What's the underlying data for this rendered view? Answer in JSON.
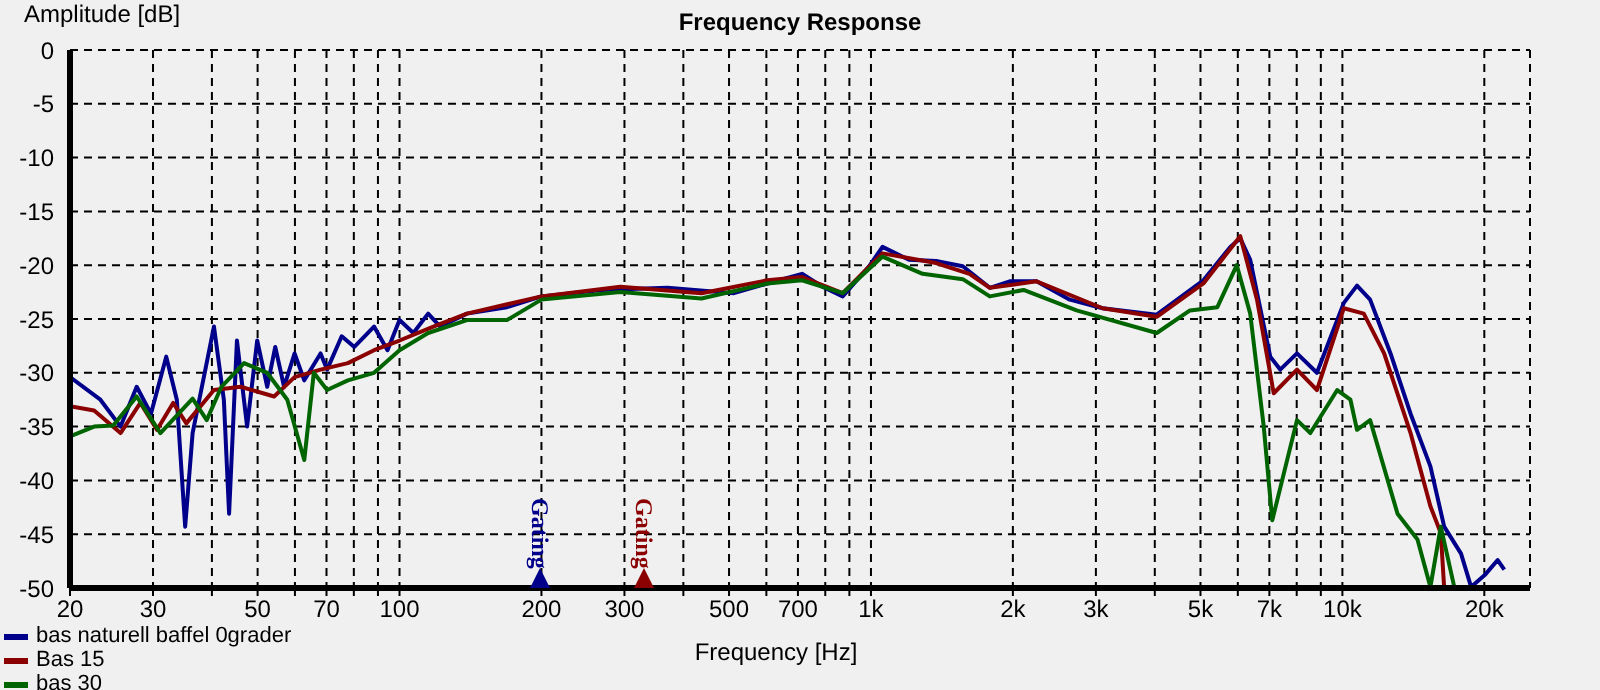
{
  "chart_data": {
    "type": "line",
    "title": "Frequency Response",
    "xlabel": "Frequency [Hz]",
    "ylabel": "Amplitude [dB]",
    "log": "x",
    "grid": true,
    "legend": "bottom left",
    "marker": "none",
    "line_style": "solid",
    "xlim": [
      20,
      25000
    ],
    "ylim": [
      -50,
      0
    ],
    "xticks": [
      20,
      30,
      {
        "value": 40,
        "label": null
      },
      50,
      {
        "value": 60,
        "label": null
      },
      70,
      {
        "value": 80,
        "label": null
      },
      {
        "value": 90,
        "label": null
      },
      100,
      200,
      300,
      {
        "value": 400,
        "label": null
      },
      500,
      {
        "value": 600,
        "label": null
      },
      700,
      {
        "value": 800,
        "label": null
      },
      {
        "value": 900,
        "label": null
      },
      {
        "value": 1000,
        "label": "1k"
      },
      {
        "value": 2000,
        "label": "2k"
      },
      {
        "value": 3000,
        "label": "3k"
      },
      {
        "value": 4000,
        "label": null
      },
      {
        "value": 5000,
        "label": "5k"
      },
      {
        "value": 6000,
        "label": null
      },
      {
        "value": 7000,
        "label": "7k"
      },
      {
        "value": 8000,
        "label": null
      },
      {
        "value": 9000,
        "label": null
      },
      {
        "value": 10000,
        "label": "10k"
      },
      {
        "value": 20000,
        "label": "20k"
      }
    ],
    "yticks": [
      0,
      -5,
      -10,
      -15,
      -20,
      -25,
      -30,
      -35,
      -40,
      -45,
      -50
    ],
    "annotations": [
      "Gating",
      "Gating"
    ],
    "series": [
      {
        "name": "bas naturell baffel 0grader",
        "color": "#00008b",
        "x": [
          20,
          23.2,
          25.6,
          27.7,
          29.7,
          32,
          33.7,
          35.1,
          36.4,
          40.4,
          42.4,
          43.5,
          45.2,
          47.5,
          49.9,
          52.4,
          54.5,
          56.9,
          59.9,
          62.8,
          68,
          70.2,
          75.4,
          80.2,
          88.3,
          94.3,
          100,
          107,
          115,
          122,
          139,
          169,
          200,
          268,
          370,
          512,
          603,
          714,
          789,
          871,
          991,
          1058,
          1204,
          1374,
          1566,
          1787,
          1969,
          2245,
          2641,
          3100,
          4038,
          5072,
          5785,
          6072,
          6375,
          7030,
          7380,
          8011,
          8830,
          10070,
          10740,
          11450,
          12650,
          13950,
          15370,
          16440,
          17850,
          18750,
          20040,
          21350,
          22050
        ],
        "values": [
          -30.4,
          -32.5,
          -35,
          -31.3,
          -33.8,
          -28.5,
          -32.5,
          -44.3,
          -35.6,
          -25.7,
          -32.5,
          -43.1,
          -27,
          -35,
          -27,
          -31.3,
          -27.6,
          -31.3,
          -28.2,
          -30.7,
          -28.2,
          -29.7,
          -26.6,
          -27.6,
          -25.7,
          -27.9,
          -25.1,
          -26.3,
          -24.5,
          -25.7,
          -24.5,
          -23.9,
          -22.9,
          -22.3,
          -22.1,
          -22.6,
          -21.7,
          -20.8,
          -22,
          -22.9,
          -20.1,
          -18.3,
          -19.5,
          -19.6,
          -20.1,
          -22.1,
          -21.5,
          -21.5,
          -23.2,
          -24,
          -24.6,
          -21.4,
          -18.3,
          -17.5,
          -19.5,
          -28.5,
          -29.7,
          -28.2,
          -30,
          -23.5,
          -21.9,
          -23.2,
          -28.2,
          -33.8,
          -38.7,
          -44.3,
          -46.8,
          -49.9,
          -48.8,
          -47.4,
          -48.3
        ]
      },
      {
        "name": "Bas 15",
        "color": "#8b0000",
        "x": [
          20,
          22.5,
          25.6,
          28.2,
          30.6,
          33.1,
          35.3,
          40.4,
          46,
          54.2,
          59.9,
          68,
          77.7,
          88.3,
          100,
          118,
          139,
          200,
          294,
          437,
          603,
          714,
          871,
          1058,
          1374,
          1618,
          1787,
          2245,
          3100,
          4038,
          5072,
          6072,
          6590,
          7150,
          8011,
          8830,
          10070,
          11100,
          12260,
          13950,
          15370,
          16170,
          16440
        ],
        "values": [
          -33.1,
          -33.5,
          -35.6,
          -32.8,
          -35.3,
          -32.8,
          -34.7,
          -31.6,
          -31.3,
          -32.2,
          -30.4,
          -29.7,
          -29.1,
          -27.9,
          -27,
          -25.7,
          -24.5,
          -22.9,
          -22,
          -22.6,
          -21.4,
          -21.1,
          -22.6,
          -18.9,
          -19.8,
          -20.8,
          -22.1,
          -21.5,
          -24,
          -24.8,
          -21.7,
          -17.3,
          -23.2,
          -31.9,
          -29.7,
          -31.6,
          -24,
          -24.5,
          -28.2,
          -35.6,
          -42.4,
          -44.9,
          -50
        ]
      },
      {
        "name": "bas 30",
        "color": "#006400",
        "x": [
          20,
          22.5,
          24.7,
          27.7,
          31.1,
          36.4,
          39,
          41.9,
          46.8,
          52.4,
          57.8,
          62.8,
          65.8,
          70.2,
          77.7,
          88.3,
          100,
          115,
          139,
          169,
          200,
          294,
          437,
          603,
          714,
          871,
          1058,
          1287,
          1566,
          1787,
          2107,
          2730,
          4038,
          4750,
          5430,
          5970,
          6375,
          6810,
          7100,
          8011,
          8550,
          9750,
          10400,
          10740,
          11450,
          13090,
          14430,
          15370,
          16170,
          17270
        ],
        "values": [
          -35.9,
          -35,
          -34.9,
          -32.2,
          -35.6,
          -32.4,
          -34.4,
          -31.3,
          -29.1,
          -30,
          -32.5,
          -38.1,
          -30,
          -31.6,
          -30.7,
          -30,
          -27.9,
          -26.3,
          -25.1,
          -25.1,
          -23.2,
          -22.5,
          -23.1,
          -21.7,
          -21.4,
          -22.6,
          -19.2,
          -20.8,
          -21.3,
          -22.9,
          -22.3,
          -24.2,
          -26.3,
          -24.2,
          -23.9,
          -20,
          -24.5,
          -35,
          -43.7,
          -34.4,
          -35.6,
          -31.6,
          -32.5,
          -35.3,
          -34.4,
          -43.1,
          -45.5,
          -49.9,
          -44.3,
          -49.9
        ]
      }
    ]
  }
}
